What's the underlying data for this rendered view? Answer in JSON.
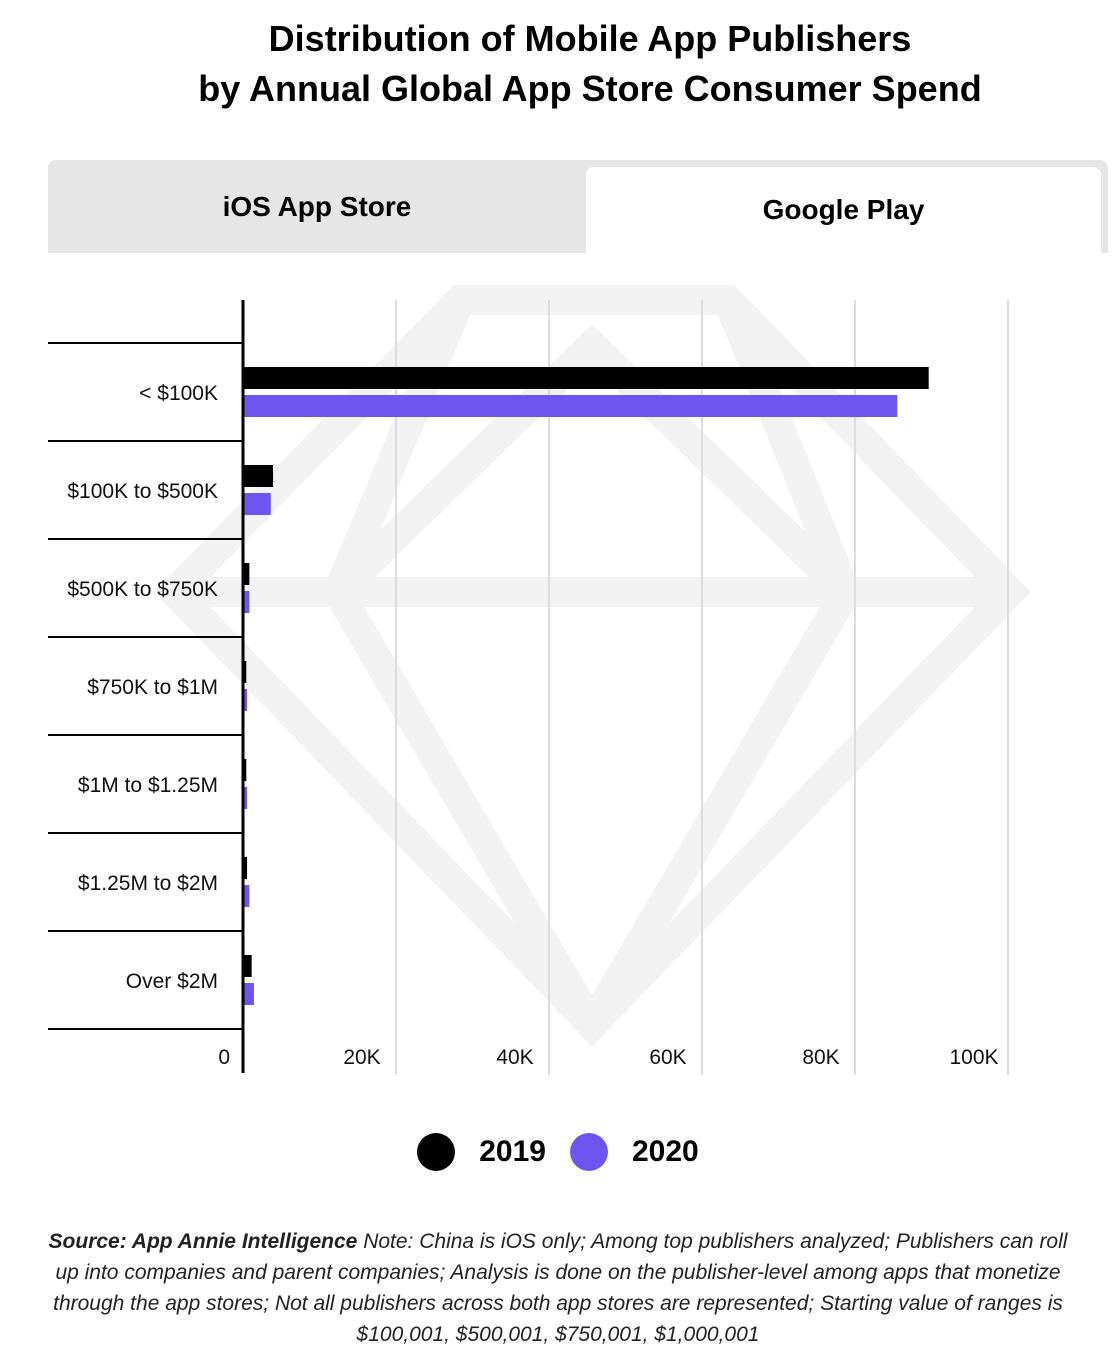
{
  "title": {
    "line1": "Distribution of Mobile App Publishers",
    "line2": "by Annual Global App Store Consumer Spend"
  },
  "tabs": [
    {
      "label": "iOS App Store",
      "active": false
    },
    {
      "label": "Google Play",
      "active": true
    }
  ],
  "colors": {
    "series_2019": "#000000",
    "series_2020": "#6e55f0",
    "grid": "#dcdbe3",
    "watermark": "#f2f2f2"
  },
  "chart_data": {
    "type": "bar",
    "orientation": "horizontal",
    "categories": [
      "< $100K",
      "$100K to $500K",
      "$500K to $750K",
      "$750K to $1M",
      "$1M to $1.25M",
      "$1.25M to $2M",
      "Over $2M"
    ],
    "series": [
      {
        "name": "2019",
        "values": [
          89500,
          3800,
          700,
          300,
          300,
          400,
          1000
        ]
      },
      {
        "name": "2020",
        "values": [
          85400,
          3500,
          700,
          400,
          400,
          700,
          1300
        ]
      }
    ],
    "xlim": [
      0,
      100000
    ],
    "xticks": [
      0,
      20000,
      40000,
      60000,
      80000,
      100000
    ],
    "xtick_labels": [
      "0",
      "20K",
      "40K",
      "60K",
      "80K",
      "100K"
    ],
    "grid": true,
    "legend": "bottom-center"
  },
  "source": {
    "label": "Source: App Annie Intelligence",
    "note": " Note: China is iOS only; Among top publishers analyzed; Publishers can roll up into companies and parent companies; Analysis is done on the publisher-level among apps that monetize through the app stores; Not all publishers across both app stores are represented; Starting value of ranges is $100,001, $500,001, $750,001, $1,000,001"
  }
}
